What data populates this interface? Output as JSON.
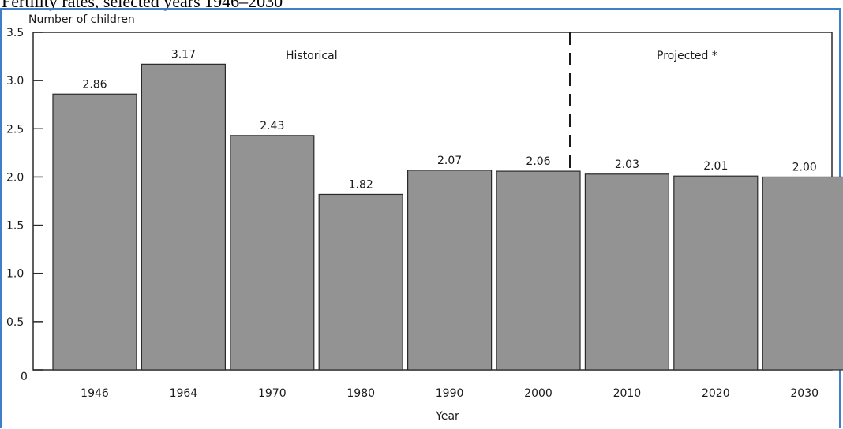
{
  "page": {
    "title": "Fertility rates, selected years 1946–2030"
  },
  "chart_data": {
    "type": "bar",
    "ylabel": "Number of children",
    "xlabel": "Year",
    "ylim": [
      0,
      3.5
    ],
    "yticks": [
      "3.5",
      "3.0",
      "2.5",
      "2.0",
      "1.5",
      "1.0",
      "0.5",
      "0"
    ],
    "categories": [
      "1946",
      "1964",
      "1970",
      "1980",
      "1990",
      "2000",
      "2010",
      "2020",
      "2030"
    ],
    "values": [
      2.86,
      3.17,
      2.43,
      1.82,
      2.07,
      2.06,
      2.03,
      2.01,
      2.0
    ],
    "value_labels": [
      "2.86",
      "3.17",
      "2.43",
      "1.82",
      "2.07",
      "2.06",
      "2.03",
      "2.01",
      "2.00"
    ],
    "annotations": {
      "historical": "Historical",
      "projected": "Projected *"
    },
    "bar_color": "#939393",
    "grid": false
  }
}
